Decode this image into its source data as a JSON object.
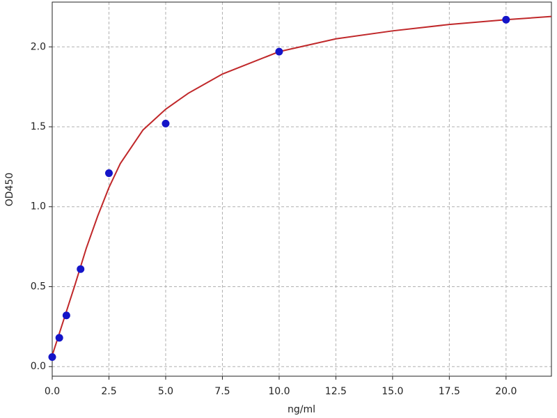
{
  "chart_data": {
    "type": "scatter",
    "x_label": "ng/ml",
    "y_label": "OD450",
    "points": {
      "color": "#1414c8",
      "x": [
        0,
        0.3125,
        0.625,
        1.25,
        2.5,
        5,
        10,
        20
      ],
      "values": [
        0.06,
        0.18,
        0.32,
        0.61,
        1.21,
        1.52,
        1.97,
        2.17
      ]
    },
    "curve": {
      "color": "#c0282a",
      "x": [
        0,
        0.25,
        0.5,
        0.75,
        1,
        1.5,
        2,
        2.5,
        3,
        4,
        5,
        6,
        7.5,
        10,
        12.5,
        15,
        17.5,
        20,
        22
      ],
      "values": [
        0.07,
        0.18,
        0.29,
        0.4,
        0.51,
        0.74,
        0.94,
        1.12,
        1.27,
        1.48,
        1.61,
        1.71,
        1.83,
        1.97,
        2.05,
        2.1,
        2.14,
        2.17,
        2.19
      ]
    },
    "xlim": [
      0,
      22
    ],
    "ylim": [
      -0.06,
      2.28
    ],
    "xticks": [
      {
        "value": 0,
        "label": "0.0"
      },
      {
        "value": 2.5,
        "label": "2.5"
      },
      {
        "value": 5,
        "label": "5.0"
      },
      {
        "value": 7.5,
        "label": "7.5"
      },
      {
        "value": 10,
        "label": "10.0"
      },
      {
        "value": 12.5,
        "label": "12.5"
      },
      {
        "value": 15,
        "label": "15.0"
      },
      {
        "value": 17.5,
        "label": "17.5"
      },
      {
        "value": 20,
        "label": "20.0"
      }
    ],
    "yticks": [
      {
        "value": 0,
        "label": "0.0"
      },
      {
        "value": 0.5,
        "label": "0.5"
      },
      {
        "value": 1,
        "label": "1.0"
      },
      {
        "value": 1.5,
        "label": "1.5"
      },
      {
        "value": 2,
        "label": "2.0"
      }
    ],
    "grid": true
  }
}
